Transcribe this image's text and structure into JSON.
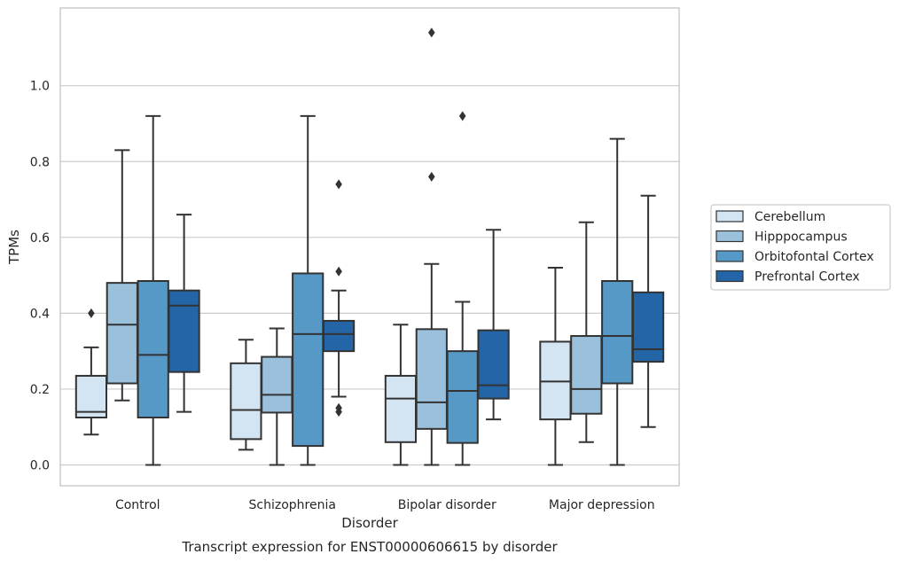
{
  "chart_data": {
    "type": "box",
    "title": "",
    "caption": "Transcript expression for ENST00000606615 by disorder",
    "xlabel": "Disorder",
    "ylabel": "TPMs",
    "ylim": [
      -0.055,
      1.205
    ],
    "yticks": [
      0.0,
      0.2,
      0.4,
      0.6,
      0.8,
      1.0
    ],
    "ytick_labels": [
      "0.0",
      "0.2",
      "0.4",
      "0.6",
      "0.8",
      "1.0"
    ],
    "grid": "horizontal",
    "legend_position": "right",
    "categories": [
      "Control",
      "Schizophrenia",
      "Bipolar disorder",
      "Major depression"
    ],
    "series": [
      {
        "name": "Cerebellum",
        "color": "#d3e4f3",
        "boxes": [
          {
            "whislo": 0.08,
            "q1": 0.125,
            "med": 0.14,
            "q3": 0.235,
            "whishi": 0.31,
            "fliers": [
              0.4
            ]
          },
          {
            "whislo": 0.04,
            "q1": 0.068,
            "med": 0.145,
            "q3": 0.268,
            "whishi": 0.33,
            "fliers": []
          },
          {
            "whislo": 0.0,
            "q1": 0.06,
            "med": 0.175,
            "q3": 0.235,
            "whishi": 0.37,
            "fliers": []
          },
          {
            "whislo": 0.0,
            "q1": 0.12,
            "med": 0.22,
            "q3": 0.325,
            "whishi": 0.52,
            "fliers": []
          }
        ]
      },
      {
        "name": "Hipppocampus",
        "color": "#9ac0dc",
        "boxes": [
          {
            "whislo": 0.17,
            "q1": 0.215,
            "med": 0.37,
            "q3": 0.48,
            "whishi": 0.83,
            "fliers": []
          },
          {
            "whislo": 0.0,
            "q1": 0.138,
            "med": 0.185,
            "q3": 0.285,
            "whishi": 0.36,
            "fliers": []
          },
          {
            "whislo": 0.0,
            "q1": 0.095,
            "med": 0.165,
            "q3": 0.358,
            "whishi": 0.53,
            "fliers": [
              0.76,
              1.14
            ]
          },
          {
            "whislo": 0.06,
            "q1": 0.135,
            "med": 0.2,
            "q3": 0.34,
            "whishi": 0.64,
            "fliers": []
          }
        ]
      },
      {
        "name": "Orbitofontal Cortex",
        "color": "#5698c6",
        "boxes": [
          {
            "whislo": 0.0,
            "q1": 0.125,
            "med": 0.29,
            "q3": 0.485,
            "whishi": 0.92,
            "fliers": []
          },
          {
            "whislo": 0.0,
            "q1": 0.05,
            "med": 0.345,
            "q3": 0.505,
            "whishi": 0.92,
            "fliers": []
          },
          {
            "whislo": 0.0,
            "q1": 0.058,
            "med": 0.195,
            "q3": 0.3,
            "whishi": 0.43,
            "fliers": [
              0.92
            ]
          },
          {
            "whislo": 0.0,
            "q1": 0.215,
            "med": 0.34,
            "q3": 0.485,
            "whishi": 0.86,
            "fliers": []
          }
        ]
      },
      {
        "name": "Prefrontal Cortex",
        "color": "#2465a7",
        "boxes": [
          {
            "whislo": 0.14,
            "q1": 0.245,
            "med": 0.42,
            "q3": 0.46,
            "whishi": 0.66,
            "fliers": []
          },
          {
            "whislo": 0.18,
            "q1": 0.3,
            "med": 0.345,
            "q3": 0.38,
            "whishi": 0.46,
            "fliers": [
              0.14,
              0.15,
              0.51,
              0.74
            ]
          },
          {
            "whislo": 0.12,
            "q1": 0.175,
            "med": 0.21,
            "q3": 0.355,
            "whishi": 0.62,
            "fliers": []
          },
          {
            "whislo": 0.1,
            "q1": 0.272,
            "med": 0.305,
            "q3": 0.455,
            "whishi": 0.71,
            "fliers": []
          }
        ]
      }
    ]
  }
}
